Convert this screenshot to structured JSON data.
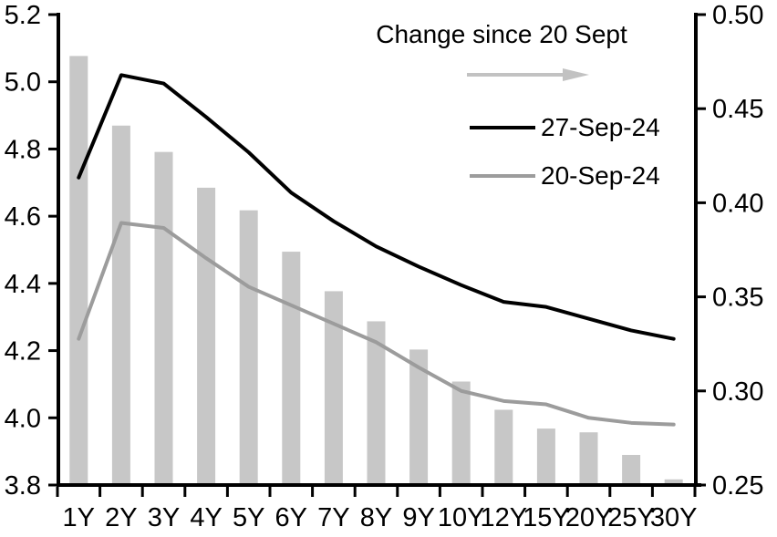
{
  "window": {
    "background": "#ffffff"
  },
  "chart_data": {
    "type": "combo-bar-line",
    "title": "",
    "categories": [
      "1Y",
      "2Y",
      "3Y",
      "4Y",
      "5Y",
      "6Y",
      "7Y",
      "8Y",
      "9Y",
      "10Y",
      "12Y",
      "15Y",
      "20Y",
      "25Y",
      "30Y"
    ],
    "series": [
      {
        "name": "Change since 20 Sept",
        "type": "bar",
        "axis": "right",
        "color": "#c7c7c7",
        "values": [
          0.478,
          0.441,
          0.427,
          0.408,
          0.396,
          0.374,
          0.353,
          0.337,
          0.322,
          0.305,
          0.29,
          0.28,
          0.278,
          0.266,
          0.253
        ]
      },
      {
        "name": "27-Sep-24",
        "type": "line",
        "axis": "left",
        "color": "#000000",
        "values": [
          4.715,
          5.02,
          4.995,
          4.895,
          4.79,
          4.67,
          4.585,
          4.51,
          4.45,
          4.395,
          4.345,
          4.33,
          4.295,
          4.26,
          4.235
        ]
      },
      {
        "name": "20-Sep-24",
        "type": "line",
        "axis": "left",
        "color": "#9c9c9c",
        "values": [
          4.235,
          4.58,
          4.565,
          4.475,
          4.39,
          4.335,
          4.28,
          4.225,
          4.15,
          4.08,
          4.05,
          4.04,
          4.0,
          3.985,
          3.98
        ]
      }
    ],
    "left_axis": {
      "min": 3.8,
      "max": 5.2,
      "tick_labels": [
        "5.2",
        "5.0",
        "4.8",
        "4.6",
        "4.4",
        "4.2",
        "4.0",
        "3.8"
      ]
    },
    "right_axis": {
      "min": 0.25,
      "max": 0.5,
      "tick_labels": [
        "0.50",
        "0.45",
        "0.40",
        "0.35",
        "0.30",
        "0.25"
      ]
    },
    "legend": {
      "title": "Change since 20 Sept",
      "arrow_icon": "right-arrow",
      "arrow_color": "#c2c2c2",
      "items": [
        "27-Sep-24",
        "20-Sep-24"
      ],
      "position": "top-right-inside"
    },
    "grid": false,
    "axis_color": "#000000"
  }
}
